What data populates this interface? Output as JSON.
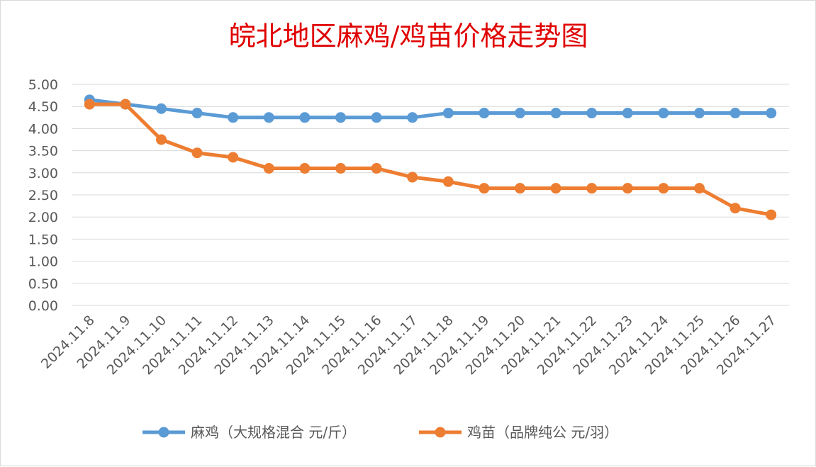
{
  "chart_data": {
    "type": "line",
    "title": "皖北地区麻鸡/鸡苗价格走势图",
    "xlabel": "",
    "ylabel": "",
    "ylim": [
      0,
      5
    ],
    "yticks": [
      "0.00",
      "0.50",
      "1.00",
      "1.50",
      "2.00",
      "2.50",
      "3.00",
      "3.50",
      "4.00",
      "4.50",
      "5.00"
    ],
    "grid": true,
    "legend_position": "bottom",
    "categories": [
      "2024.11.8",
      "2024.11.9",
      "2024.11.10",
      "2024.11.11",
      "2024.11.12",
      "2024.11.13",
      "2024.11.14",
      "2024.11.15",
      "2024.11.16",
      "2024.11.17",
      "2024.11.18",
      "2024.11.19",
      "2024.11.20",
      "2024.11.21",
      "2024.11.22",
      "2024.11.23",
      "2024.11.24",
      "2024.11.25",
      "2024.11.26",
      "2024.11.27"
    ],
    "series": [
      {
        "name": "麻鸡（大规格混合 元/斤）",
        "color": "#5b9bd5",
        "values": [
          4.65,
          4.55,
          4.45,
          4.35,
          4.25,
          4.25,
          4.25,
          4.25,
          4.25,
          4.25,
          4.35,
          4.35,
          4.35,
          4.35,
          4.35,
          4.35,
          4.35,
          4.35,
          4.35,
          4.35
        ]
      },
      {
        "name": "鸡苗（品牌纯公 元/羽）",
        "color": "#ed7d31",
        "values": [
          4.55,
          4.55,
          3.75,
          3.45,
          3.35,
          3.1,
          3.1,
          3.1,
          3.1,
          2.9,
          2.8,
          2.65,
          2.65,
          2.65,
          2.65,
          2.65,
          2.65,
          2.65,
          2.2,
          2.05
        ]
      }
    ]
  }
}
